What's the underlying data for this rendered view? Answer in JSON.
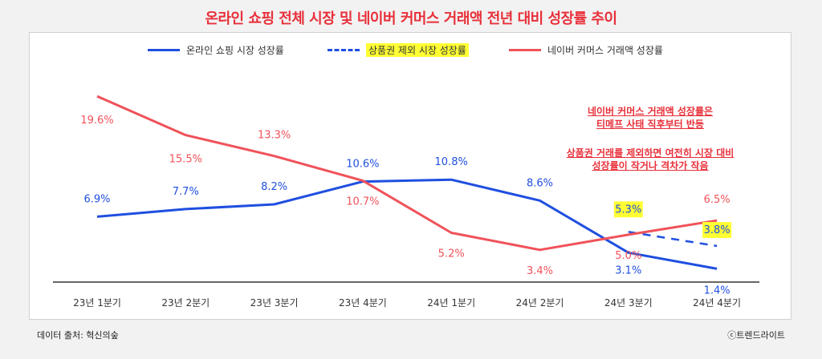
{
  "title": "온라인 쇼핑 전체 시장 및 네이버 커머스 거래액 전년 대비 성장률 추이",
  "legend": [
    {
      "label": "온라인 쇼핑 시장 성장률",
      "color": "#1f4fe0",
      "style": "solid",
      "highlight": false
    },
    {
      "label": "상품권 제외 시장 성장률",
      "color": "#1f4fe0",
      "style": "dashed",
      "highlight": true
    },
    {
      "label": "네이버 커머스 거래액 성장률",
      "color": "#f0525a",
      "style": "solid",
      "highlight": false
    }
  ],
  "notes": [
    {
      "lines": [
        "네이버 커머스 거래액 성장률은",
        "티메프 사태 직후부터 반등"
      ]
    },
    {
      "lines": [
        "상품권 거래를 제외하면 여전히 시장 대비",
        "성장률이 작거나 격차가 작음"
      ]
    }
  ],
  "footer": {
    "source": "데이터 출처: 혁신의숲",
    "credit": "ⓒ트렌드라이트"
  },
  "chart_data": {
    "type": "line",
    "title": "온라인 쇼핑 전체 시장 및 네이버 커머스 거래액 전년 대비 성장률 추이",
    "categories": [
      "23년 1분기",
      "23년 2분기",
      "23년 3분기",
      "23년 4분기",
      "24년 1분기",
      "24년 2분기",
      "24년 3분기",
      "24년 4분기"
    ],
    "ylim": [
      0,
      21
    ],
    "grid": false,
    "legend_position": "top",
    "series": [
      {
        "name": "온라인 쇼핑 시장 성장률",
        "color": "#1f4fe0",
        "values": [
          6.9,
          7.7,
          8.2,
          10.6,
          10.8,
          8.6,
          3.1,
          1.4
        ],
        "labels": [
          "6.9%",
          "7.7%",
          "8.2%",
          "10.6%",
          "10.8%",
          "8.6%",
          "3.1%",
          "1.4%"
        ]
      },
      {
        "name": "상품권 제외 시장 성장률",
        "color": "#1f4fe0",
        "dashed": true,
        "values": [
          null,
          null,
          null,
          null,
          null,
          null,
          5.3,
          3.8
        ],
        "labels": [
          null,
          null,
          null,
          null,
          null,
          null,
          "5.3%",
          "3.8%"
        ]
      },
      {
        "name": "네이버 커머스 거래액 성장률",
        "color": "#f0525a",
        "values": [
          19.6,
          15.5,
          13.3,
          10.7,
          5.2,
          3.4,
          5.0,
          6.5
        ],
        "labels": [
          "19.6%",
          "15.5%",
          "13.3%",
          "10.7%",
          "5.2%",
          "3.4%",
          "5.0%",
          "6.5%"
        ]
      }
    ]
  }
}
